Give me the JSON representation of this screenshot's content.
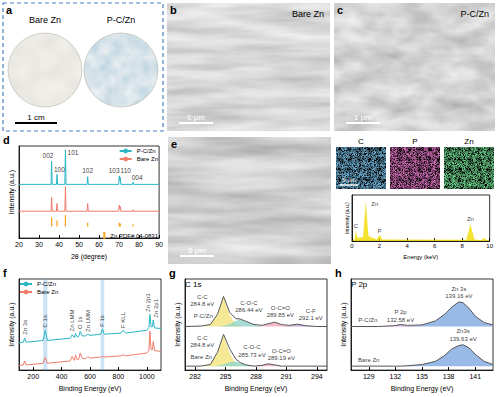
{
  "images": [
    {
      "panel": "a",
      "labels": [
        "Bare Zn",
        "P-C/Zn"
      ],
      "scale_bar": "1 cm"
    },
    {
      "panel": "b",
      "label": "Bare Zn",
      "scale_bar": "1 μm"
    },
    {
      "panel": "c",
      "label": "P-C/Zn",
      "scale_bar": "1 μm"
    },
    {
      "panel": "e",
      "scale_bar": "5 μm",
      "maps": [
        {
          "label": "C",
          "color": "#2f7fbf"
        },
        {
          "label": "P",
          "color": "#c0308f"
        },
        {
          "label": "Zn",
          "color": "#2fbf4f"
        }
      ],
      "map_scale_bar": "5 μm"
    }
  ],
  "chart_data": [
    {
      "panel": "d",
      "type": "line",
      "x_label": "2θ (degree)",
      "y_label": "Intensity (a.u.)",
      "x": [
        20,
        36.0,
        36.3,
        36.6,
        38.7,
        39.0,
        39.3,
        42.9,
        43.2,
        43.5,
        54.0,
        54.3,
        54.6,
        69.8,
        70.1,
        70.35,
        70.6,
        70.9,
        76.7,
        77.0,
        77.3,
        90
      ],
      "series": [
        {
          "name": "P-C/Zn",
          "color": "#2bb5c5",
          "values": [
            55,
            55,
            85,
            55,
            55,
            68,
            55,
            55,
            100,
            55,
            55,
            65,
            55,
            55,
            66,
            60,
            64,
            55,
            55,
            58,
            55,
            55
          ]
        },
        {
          "name": "Bare Zn",
          "color": "#f07c6c",
          "values": [
            20,
            20,
            38,
            20,
            20,
            30,
            20,
            20,
            52,
            20,
            20,
            30,
            20,
            20,
            28,
            23,
            26,
            20,
            20,
            22,
            20,
            20
          ]
        },
        {
          "name": "Zn PDF# 04-0831",
          "type": "bar",
          "color": "#f5a623",
          "x": [
            36.3,
            39.0,
            43.2,
            54.3,
            70.1,
            70.6,
            77.0
          ],
          "values": [
            12,
            8,
            15,
            5,
            5,
            4,
            3
          ]
        }
      ],
      "xlim": [
        20,
        90
      ],
      "xticks": [
        20,
        30,
        40,
        50,
        60,
        70,
        80,
        90
      ],
      "ylim": [
        -15,
        105
      ],
      "tick_labels": "x",
      "legend": "upper right",
      "annotations": [
        {
          "text": "002",
          "x": 34.5,
          "y": 93
        },
        {
          "text": "100",
          "x": 40.2,
          "y": 75
        },
        {
          "text": "101",
          "x": 47,
          "y": 96
        },
        {
          "text": "102",
          "x": 54.3,
          "y": 73
        },
        {
          "text": "103",
          "x": 67.5,
          "y": 73
        },
        {
          "text": "110",
          "x": 73.3,
          "y": 73
        },
        {
          "text": "004",
          "x": 79,
          "y": 64
        }
      ]
    },
    {
      "type": "area",
      "x_label": "Energy (keV)",
      "y_label": "Intensity (a.u.)",
      "x": [
        0,
        0.2,
        0.28,
        0.4,
        0.8,
        1.0,
        1.2,
        1.8,
        2.0,
        2.2,
        8.3,
        8.6,
        8.9,
        9.4,
        9.6,
        9.8,
        10
      ],
      "series": [
        {
          "color": "#f2dc00",
          "values": [
            0,
            5,
            25,
            8,
            10,
            95,
            12,
            4,
            15,
            4,
            3,
            40,
            4,
            2,
            8,
            2,
            1
          ]
        }
      ],
      "xlim": [
        0,
        10
      ],
      "xticks": [
        0,
        2,
        4,
        6,
        8,
        10
      ],
      "ylim": [
        0,
        110
      ],
      "tick_labels": "x",
      "annotations": [
        {
          "text": "C",
          "x": 0.28,
          "y": 36
        },
        {
          "text": "Zn",
          "x": 1.65,
          "y": 88
        },
        {
          "text": "P",
          "x": 2.0,
          "y": 24
        },
        {
          "text": "Zn",
          "x": 8.6,
          "y": 52
        }
      ]
    },
    {
      "panel": "f",
      "type": "line",
      "x_label": "Binding Energy (eV)",
      "y_label": "Intensity (a.u.)",
      "x": [
        100,
        130,
        140,
        150,
        270,
        285,
        300,
        460,
        475,
        490,
        498,
        510,
        520,
        531,
        545,
        570,
        585,
        600,
        675,
        688,
        700,
        820,
        833,
        850,
        1000,
        1015,
        1022,
        1030,
        1040,
        1045,
        1055,
        1100
      ],
      "series": [
        {
          "name": "P-C/Zn",
          "color": "#2bb5c5",
          "values": [
            48,
            49,
            56,
            49,
            52,
            70,
            52,
            56,
            62,
            57,
            64,
            58,
            59,
            68,
            60,
            60,
            63,
            61,
            63,
            72,
            63,
            65,
            70,
            65,
            70,
            75,
            98,
            76,
            76,
            88,
            74,
            73
          ]
        },
        {
          "name": "Bare Zn",
          "color": "#f07c6c",
          "values": [
            8,
            9,
            16,
            9,
            12,
            22,
            12,
            16,
            24,
            17,
            26,
            18,
            19,
            30,
            21,
            20,
            24,
            21,
            23,
            24,
            23,
            25,
            27,
            25,
            30,
            35,
            68,
            36,
            36,
            50,
            34,
            33
          ]
        }
      ],
      "xlim": [
        100,
        1100
      ],
      "xticks": [
        200,
        400,
        600,
        800,
        1000
      ],
      "ylim": [
        0,
        160
      ],
      "tick_labels": "x",
      "legend": "upper left",
      "highlight_ranges": [
        [
          270,
          300
        ],
        [
          675,
          700
        ]
      ],
      "annotations": [
        {
          "text": "Zn 3s",
          "x": 140,
          "y": 62
        },
        {
          "text": "C 1s",
          "x": 285,
          "y": 75
        },
        {
          "text": "Zn LMM",
          "x": 475,
          "y": 68
        },
        {
          "text": "O 1s",
          "x": 531,
          "y": 72
        },
        {
          "text": "Zn LMM",
          "x": 585,
          "y": 67
        },
        {
          "text": "F 1s",
          "x": 688,
          "y": 76
        },
        {
          "text": "F KLL",
          "x": 833,
          "y": 74
        },
        {
          "text": "Zn 2p3",
          "x": 1010,
          "y": 102
        },
        {
          "text": "Zn 2p1",
          "x": 1065,
          "y": 92
        }
      ]
    },
    {
      "panel": "g",
      "type": "line",
      "title": "C 1s",
      "x_label": "Binding Energy (eV)",
      "y_label": "Intensity (a.u.)",
      "x": [
        281,
        282.5,
        283.5,
        284.2,
        284.8,
        285.4,
        286.0,
        286.44,
        287,
        287.8,
        288.6,
        289.2,
        289.85,
        290.5,
        291.3,
        292.1,
        292.9,
        294,
        295
      ],
      "series": [
        {
          "type": "area",
          "color": "#f3e37c",
          "values": [
            55,
            55,
            57,
            70,
            92,
            70,
            58,
            55.5,
            55,
            55,
            55,
            55,
            55,
            55,
            55,
            55,
            55,
            55,
            55
          ]
        },
        {
          "type": "area",
          "color": "#8fd3c9",
          "values": [
            55,
            55,
            55,
            55,
            56,
            58,
            62,
            64,
            61,
            57,
            55,
            55,
            55,
            55,
            55,
            55,
            55,
            55,
            55
          ]
        },
        {
          "type": "area",
          "color": "#f2a6b8",
          "values": [
            55,
            55,
            55,
            55,
            55,
            55,
            55,
            55,
            55,
            55,
            56,
            58,
            60,
            57,
            55.5,
            55,
            55,
            55,
            55
          ]
        },
        {
          "type": "area",
          "color": "#b59ad6",
          "values": [
            55,
            55,
            55,
            55,
            55,
            55,
            55,
            55,
            55,
            55,
            55,
            55,
            55,
            55,
            56,
            58,
            56,
            55,
            55
          ]
        },
        {
          "type": "line",
          "color": "#555555",
          "values": [
            55,
            55.5,
            57.5,
            70.5,
            93,
            73,
            65,
            64.5,
            61.5,
            57.5,
            56.5,
            58.5,
            60.5,
            57.5,
            56.5,
            58,
            56,
            55,
            55
          ]
        },
        {
          "type": "area",
          "color": "#f3e37c",
          "values": [
            5,
            5,
            7,
            22,
            43,
            22,
            8,
            5.5,
            5,
            5,
            5,
            5,
            5,
            5,
            5,
            5,
            5,
            5,
            5
          ]
        },
        {
          "type": "area",
          "color": "#8fd3c9",
          "values": [
            5,
            5,
            5,
            5.5,
            7,
            10,
            11,
            9,
            6.5,
            5,
            5,
            5,
            5,
            5,
            5,
            5,
            5,
            5,
            5
          ]
        },
        {
          "type": "area",
          "color": "#f2a6b8",
          "values": [
            5,
            5,
            5,
            5,
            5,
            5,
            5,
            5,
            5,
            5,
            6,
            8,
            6.5,
            5,
            5,
            5,
            5,
            5,
            5
          ]
        },
        {
          "type": "line",
          "color": "#555555",
          "values": [
            5,
            5,
            7,
            22.5,
            45,
            27,
            14,
            9.5,
            6.5,
            5,
            6,
            8,
            6.5,
            5,
            5,
            5,
            5,
            5,
            5
          ]
        }
      ],
      "xlim": [
        281,
        295
      ],
      "xticks": [
        282,
        285,
        288,
        291,
        294
      ],
      "ylim": [
        0,
        115
      ],
      "tick_labels": "x",
      "annotations": [
        {
          "text": "P-C/Zn",
          "x": 282.8,
          "y": 68
        },
        {
          "text": [
            "C-C",
            "284.8 eV"
          ],
          "x": 282.7,
          "y": 88
        },
        {
          "text": [
            "C-O-C",
            "286.44 eV"
          ],
          "x": 287.3,
          "y": 80
        },
        {
          "text": [
            "O-C=O",
            "289.85 eV"
          ],
          "x": 290.4,
          "y": 74
        },
        {
          "text": [
            "C-F",
            "292.1 eV"
          ],
          "x": 293.4,
          "y": 70
        },
        {
          "text": "Bare Zn",
          "x": 282.6,
          "y": 16
        },
        {
          "text": [
            "C-C",
            "284.8 eV"
          ],
          "x": 282.7,
          "y": 36
        },
        {
          "text": [
            "C-O-C",
            "285.73 eV"
          ],
          "x": 287.6,
          "y": 24
        },
        {
          "text": [
            "O-C=O",
            "289.19 eV"
          ],
          "x": 290.5,
          "y": 20
        }
      ]
    },
    {
      "panel": "h",
      "type": "line",
      "title": "P 2p",
      "x_label": "Binding Energy (eV)",
      "y_label": "Intensity (a.u.)",
      "x": [
        127,
        130,
        131.8,
        132.58,
        133.4,
        135,
        136.5,
        137.5,
        138.4,
        139.16,
        139.63,
        140.3,
        141,
        142,
        143
      ],
      "series": [
        {
          "type": "area",
          "color": "#7fa8e0",
          "values": [
            55,
            55,
            55,
            55,
            55.5,
            57,
            62,
            70,
            80,
            86,
            85,
            78,
            68,
            60,
            57
          ]
        },
        {
          "type": "area",
          "color": "#c79be0",
          "values": [
            55,
            55,
            56,
            57.5,
            56,
            55,
            55,
            55,
            55,
            55,
            55,
            55,
            55,
            55,
            55
          ]
        },
        {
          "type": "line",
          "color": "#555555",
          "values": [
            55,
            55,
            56,
            57.5,
            56.5,
            57,
            62,
            70,
            80,
            86,
            85,
            78,
            68,
            60,
            57
          ]
        },
        {
          "type": "area",
          "color": "#7fa8e0",
          "values": [
            5,
            5,
            5,
            5,
            5.5,
            7,
            11,
            18,
            27,
            31,
            32,
            28,
            20,
            11,
            7
          ]
        },
        {
          "type": "line",
          "color": "#555555",
          "values": [
            5,
            5,
            5,
            5,
            5.5,
            7,
            11,
            18,
            27,
            31,
            32,
            28,
            20,
            11,
            7
          ]
        }
      ],
      "xlim": [
        127,
        143
      ],
      "xticks": [
        129,
        132,
        135,
        138,
        141
      ],
      "ylim": [
        0,
        115
      ],
      "tick_labels": "x",
      "annotations": [
        {
          "text": "P-C/Zn",
          "x": 128.9,
          "y": 63
        },
        {
          "text": [
            "Zn 3s",
            "139.16 eV"
          ],
          "x": 139.16,
          "y": 98
        },
        {
          "text": [
            "P 2p",
            "132.58 eV"
          ],
          "x": 132.58,
          "y": 68
        },
        {
          "text": "Bare Zn",
          "x": 129,
          "y": 13
        },
        {
          "text": [
            "Zn3s",
            "139.63 eV"
          ],
          "x": 139.63,
          "y": 44
        }
      ]
    }
  ]
}
